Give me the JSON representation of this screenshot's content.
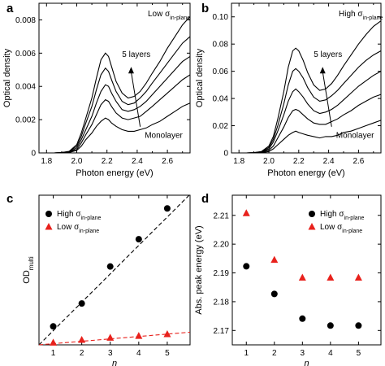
{
  "panels": [
    {
      "letter": "a"
    },
    {
      "letter": "b"
    },
    {
      "letter": "c"
    },
    {
      "letter": "d"
    }
  ],
  "chart_data": [
    {
      "panel": "a",
      "type": "line",
      "annotation_main": "Low σ",
      "annotation_sub": "in-plane",
      "xlabel": "Photon energy (eV)",
      "ylabel": "Optical density",
      "xlim": [
        1.75,
        2.75
      ],
      "ylim": [
        0,
        0.009
      ],
      "xticks": [
        1.8,
        2.0,
        2.2,
        2.4,
        2.6
      ],
      "xtick_labels": [
        "1.8",
        "2.0",
        "2.2",
        "2.4",
        "2.6"
      ],
      "yticks": [
        0,
        0.002,
        0.004,
        0.006,
        0.008
      ],
      "ytick_labels": [
        "0",
        "0.002",
        "0.004",
        "0.006",
        "0.008"
      ],
      "top_label": "5 layers",
      "bottom_label": "Monolayer",
      "x": [
        1.75,
        1.8,
        1.85,
        1.9,
        1.95,
        2.0,
        2.03,
        2.06,
        2.1,
        2.13,
        2.16,
        2.19,
        2.21,
        2.23,
        2.26,
        2.3,
        2.34,
        2.38,
        2.42,
        2.46,
        2.5,
        2.55,
        2.6,
        2.65,
        2.7,
        2.75
      ],
      "series": [
        {
          "values": [
            0,
            0,
            0,
            2e-05,
            0.0001,
            0.0005,
            0.0012,
            0.0021,
            0.0033,
            0.0045,
            0.0056,
            0.006,
            0.0058,
            0.0052,
            0.0043,
            0.0036,
            0.0033,
            0.0034,
            0.0037,
            0.0042,
            0.0048,
            0.0055,
            0.0063,
            0.007,
            0.0077,
            0.0082
          ]
        },
        {
          "values": [
            0,
            0,
            0,
            2e-05,
            8e-05,
            0.0004,
            0.001,
            0.0018,
            0.0028,
            0.0038,
            0.0047,
            0.0051,
            0.0049,
            0.0044,
            0.0037,
            0.0031,
            0.0029,
            0.003,
            0.0033,
            0.0037,
            0.0042,
            0.0048,
            0.0054,
            0.006,
            0.0066,
            0.007
          ]
        },
        {
          "values": [
            0,
            0,
            0,
            2e-05,
            6e-05,
            0.0003,
            0.0008,
            0.0014,
            0.0022,
            0.003,
            0.0037,
            0.0041,
            0.004,
            0.0036,
            0.0031,
            0.0026,
            0.0025,
            0.0026,
            0.0028,
            0.0031,
            0.0035,
            0.004,
            0.0045,
            0.005,
            0.0055,
            0.0058
          ]
        },
        {
          "values": [
            0,
            0,
            0,
            1e-05,
            5e-05,
            0.0002,
            0.0006,
            0.0011,
            0.0017,
            0.0023,
            0.0029,
            0.0032,
            0.0031,
            0.0028,
            0.0024,
            0.0021,
            0.002,
            0.0021,
            0.0022,
            0.0025,
            0.0028,
            0.0032,
            0.0036,
            0.004,
            0.0044,
            0.0047
          ]
        },
        {
          "values": [
            0,
            0,
            0,
            1e-05,
            3e-05,
            0.00015,
            0.0004,
            0.0008,
            0.0012,
            0.0016,
            0.0019,
            0.0021,
            0.002,
            0.0018,
            0.0016,
            0.0014,
            0.0013,
            0.0013,
            0.0014,
            0.0015,
            0.0017,
            0.0019,
            0.0022,
            0.0025,
            0.0028,
            0.003
          ]
        }
      ]
    },
    {
      "panel": "b",
      "type": "line",
      "annotation_main": "High σ",
      "annotation_sub": "in-plane",
      "xlabel": "Photon energy (eV)",
      "ylabel": "Optical density",
      "xlim": [
        1.75,
        2.75
      ],
      "ylim": [
        0,
        0.11
      ],
      "xticks": [
        1.8,
        2.0,
        2.2,
        2.4,
        2.6
      ],
      "xtick_labels": [
        "1.8",
        "2.0",
        "2.2",
        "2.4",
        "2.6"
      ],
      "yticks": [
        0,
        0.02,
        0.04,
        0.06,
        0.08,
        0.1
      ],
      "ytick_labels": [
        "0",
        "0.02",
        "0.04",
        "0.06",
        "0.08",
        "0.10"
      ],
      "top_label": "5 layers",
      "bottom_label": "Monolayer",
      "x": [
        1.75,
        1.8,
        1.85,
        1.9,
        1.95,
        2.0,
        2.03,
        2.06,
        2.1,
        2.13,
        2.16,
        2.18,
        2.2,
        2.23,
        2.26,
        2.3,
        2.34,
        2.38,
        2.42,
        2.46,
        2.5,
        2.55,
        2.6,
        2.65,
        2.7,
        2.75
      ],
      "series": [
        {
          "values": [
            0,
            0,
            0,
            0.0002,
            0.001,
            0.005,
            0.012,
            0.025,
            0.045,
            0.063,
            0.075,
            0.077,
            0.075,
            0.068,
            0.059,
            0.05,
            0.046,
            0.047,
            0.051,
            0.057,
            0.064,
            0.072,
            0.08,
            0.087,
            0.093,
            0.097
          ]
        },
        {
          "values": [
            0,
            0,
            0,
            0.0002,
            0.0008,
            0.004,
            0.01,
            0.02,
            0.036,
            0.05,
            0.06,
            0.062,
            0.06,
            0.055,
            0.048,
            0.041,
            0.038,
            0.039,
            0.042,
            0.046,
            0.051,
            0.057,
            0.063,
            0.068,
            0.072,
            0.075
          ]
        },
        {
          "values": [
            0,
            0,
            0,
            0.0001,
            0.0006,
            0.003,
            0.008,
            0.016,
            0.028,
            0.038,
            0.045,
            0.047,
            0.045,
            0.041,
            0.036,
            0.031,
            0.029,
            0.03,
            0.032,
            0.035,
            0.039,
            0.044,
            0.049,
            0.053,
            0.057,
            0.06
          ]
        },
        {
          "values": [
            0,
            0,
            0,
            0.0001,
            0.0004,
            0.002,
            0.005,
            0.011,
            0.019,
            0.026,
            0.031,
            0.032,
            0.031,
            0.028,
            0.025,
            0.022,
            0.021,
            0.021,
            0.023,
            0.025,
            0.028,
            0.031,
            0.035,
            0.038,
            0.041,
            0.043
          ]
        },
        {
          "values": [
            0,
            0,
            0,
            5e-05,
            0.0002,
            0.001,
            0.003,
            0.006,
            0.01,
            0.013,
            0.015,
            0.016,
            0.015,
            0.014,
            0.013,
            0.012,
            0.011,
            0.012,
            0.012,
            0.013,
            0.015,
            0.016,
            0.018,
            0.02,
            0.022,
            0.024
          ]
        }
      ]
    },
    {
      "panel": "c",
      "type": "scatter",
      "ylabel_main": "OD",
      "ylabel_sub": "multi",
      "xlabel": "n",
      "xlim": [
        0.5,
        5.8
      ],
      "ylim": [
        0,
        0.085
      ],
      "xticks": [
        1,
        2,
        3,
        4,
        5
      ],
      "xtick_labels": [
        "1",
        "2",
        "3",
        "4",
        "5"
      ],
      "legend_position": "top-left",
      "series": [
        {
          "name_main": "High σ",
          "name_sub": "in-plane",
          "marker": "circle",
          "color": "#000000",
          "x": [
            1,
            2,
            3,
            4,
            5
          ],
          "y": [
            0.0105,
            0.0235,
            0.0445,
            0.06,
            0.0775
          ],
          "fit": {
            "style": "dashed",
            "x": [
              0.5,
              5.8
            ],
            "y": [
              0,
              0.0855
            ]
          }
        },
        {
          "name_main": "Low σ",
          "name_sub": "in-plane",
          "marker": "triangle",
          "color": "#e8211c",
          "x": [
            1,
            2,
            3,
            4,
            5
          ],
          "y": [
            0.0012,
            0.0028,
            0.004,
            0.005,
            0.006
          ],
          "fit": {
            "style": "dashed",
            "x": [
              0.5,
              5.8
            ],
            "y": [
              0,
              0.0072
            ]
          }
        }
      ]
    },
    {
      "panel": "d",
      "type": "scatter",
      "ylabel": "Abs. peak energy (eV)",
      "xlabel": "n",
      "xlim": [
        0.5,
        5.8
      ],
      "ylim": [
        2.165,
        2.217
      ],
      "xticks": [
        1,
        2,
        3,
        4,
        5
      ],
      "xtick_labels": [
        "1",
        "2",
        "3",
        "4",
        "5"
      ],
      "yticks": [
        2.17,
        2.18,
        2.19,
        2.2,
        2.21
      ],
      "ytick_labels": [
        "2.17",
        "2.18",
        "2.19",
        "2.20",
        "2.21"
      ],
      "legend_position": "top-right",
      "series": [
        {
          "name_main": "High σ",
          "name_sub": "in-plane",
          "marker": "circle",
          "color": "#000000",
          "x": [
            1,
            2,
            3,
            4,
            5
          ],
          "y": [
            2.1923,
            2.1827,
            2.1741,
            2.1717,
            2.1717
          ]
        },
        {
          "name_main": "Low σ",
          "name_sub": "in-plane",
          "marker": "triangle",
          "color": "#e8211c",
          "x": [
            1,
            2,
            3,
            4,
            5
          ],
          "y": [
            2.2107,
            2.1945,
            2.1883,
            2.1883,
            2.1883
          ]
        }
      ]
    }
  ]
}
